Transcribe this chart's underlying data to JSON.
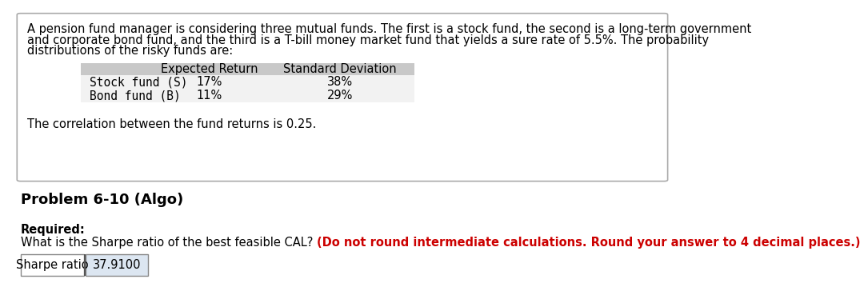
{
  "intro_text_line1": "A pension fund manager is considering three mutual funds. The first is a stock fund, the second is a long-term government",
  "intro_text_line2": "and corporate bond fund, and the third is a T-bill money market fund that yields a sure rate of 5.5%. The probability",
  "intro_text_line3": "distributions of the risky funds are:",
  "table_header_col1": "Expected Return",
  "table_header_col2": "Standard Deviation",
  "table_row1_label": "Stock fund (S)",
  "table_row1_col1": "17%",
  "table_row1_col2": "38%",
  "table_row2_label": "Bond fund (B)",
  "table_row2_col1": "11%",
  "table_row2_col2": "29%",
  "correlation_text": "The correlation between the fund returns is 0.25.",
  "problem_title": "Problem 6-10 (Algo)",
  "required_label": "Required:",
  "question_text_plain": "What is the Sharpe ratio of the best feasible CAL? ",
  "question_text_bold": "(Do not round intermediate calculations. Round your answer to 4 decimal places.)",
  "answer_label": "Sharpe ratio",
  "answer_value": "37.9100",
  "bg_color": "#ffffff",
  "box_border_color": "#aaaaaa",
  "table_header_bg": "#c8c8c8",
  "table_row_bg": "#f2f2f2",
  "text_color": "#000000",
  "red_text_color": "#cc0000",
  "font_size_body": 10.5,
  "font_size_title": 13,
  "font_size_required": 10.5,
  "font_size_answer": 10.5
}
